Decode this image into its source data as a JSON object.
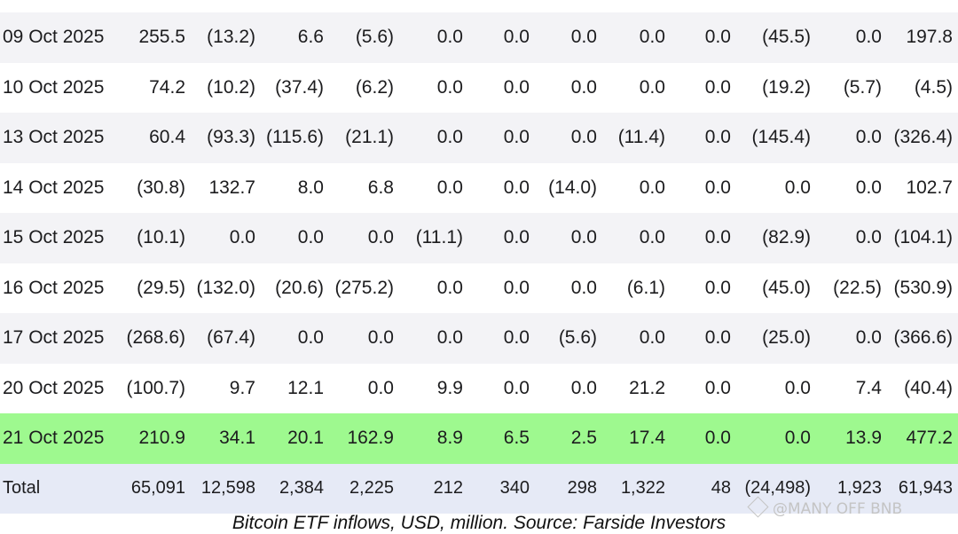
{
  "table": {
    "rows": [
      {
        "style": "alt",
        "date": "09 Oct 2025",
        "cells": [
          "255.5",
          "(13.2)",
          "6.6",
          "(5.6)",
          "0.0",
          "0.0",
          "0.0",
          "0.0",
          "0.0",
          "(45.5)",
          "0.0",
          "197.8"
        ]
      },
      {
        "style": "plain",
        "date": "10 Oct 2025",
        "cells": [
          "74.2",
          "(10.2)",
          "(37.4)",
          "(6.2)",
          "0.0",
          "0.0",
          "0.0",
          "0.0",
          "0.0",
          "(19.2)",
          "(5.7)",
          "(4.5)"
        ]
      },
      {
        "style": "alt",
        "date": "13 Oct 2025",
        "cells": [
          "60.4",
          "(93.3)",
          "(115.6)",
          "(21.1)",
          "0.0",
          "0.0",
          "0.0",
          "(11.4)",
          "0.0",
          "(145.4)",
          "0.0",
          "(326.4)"
        ]
      },
      {
        "style": "plain",
        "date": "14 Oct 2025",
        "cells": [
          "(30.8)",
          "132.7",
          "8.0",
          "6.8",
          "0.0",
          "0.0",
          "(14.0)",
          "0.0",
          "0.0",
          "0.0",
          "0.0",
          "102.7"
        ]
      },
      {
        "style": "alt",
        "date": "15 Oct 2025",
        "cells": [
          "(10.1)",
          "0.0",
          "0.0",
          "0.0",
          "(11.1)",
          "0.0",
          "0.0",
          "0.0",
          "0.0",
          "(82.9)",
          "0.0",
          "(104.1)"
        ]
      },
      {
        "style": "plain",
        "date": "16 Oct 2025",
        "cells": [
          "(29.5)",
          "(132.0)",
          "(20.6)",
          "(275.2)",
          "0.0",
          "0.0",
          "0.0",
          "(6.1)",
          "0.0",
          "(45.0)",
          "(22.5)",
          "(530.9)"
        ]
      },
      {
        "style": "alt",
        "date": "17 Oct 2025",
        "cells": [
          "(268.6)",
          "(67.4)",
          "0.0",
          "0.0",
          "0.0",
          "0.0",
          "(5.6)",
          "0.0",
          "0.0",
          "(25.0)",
          "0.0",
          "(366.6)"
        ]
      },
      {
        "style": "plain",
        "date": "20 Oct 2025",
        "cells": [
          "(100.7)",
          "9.7",
          "12.1",
          "0.0",
          "9.9",
          "0.0",
          "0.0",
          "21.2",
          "0.0",
          "0.0",
          "7.4",
          "(40.4)"
        ]
      },
      {
        "style": "highlight",
        "date": "21 Oct 2025",
        "cells": [
          "210.9",
          "34.1",
          "20.1",
          "162.9",
          "8.9",
          "6.5",
          "2.5",
          "17.4",
          "0.0",
          "0.0",
          "13.9",
          "477.2"
        ]
      },
      {
        "style": "total",
        "date": "Total",
        "cells": [
          "65,091",
          "12,598",
          "2,384",
          "2,225",
          "212",
          "340",
          "298",
          "1,322",
          "48",
          "(24,498)",
          "1,923",
          "61,943"
        ]
      }
    ]
  },
  "caption": "Bitcoin ETF inflows, USD, million. Source: Farside Investors",
  "watermark": {
    "text": "@MANY OFF BNB",
    "icon": "diamond-logo-icon"
  },
  "colors": {
    "negative": "#e8505b",
    "highlight_row": "#9ef98f",
    "total_row": "#e6eaf6",
    "alt_row": "#f3f3f6"
  }
}
